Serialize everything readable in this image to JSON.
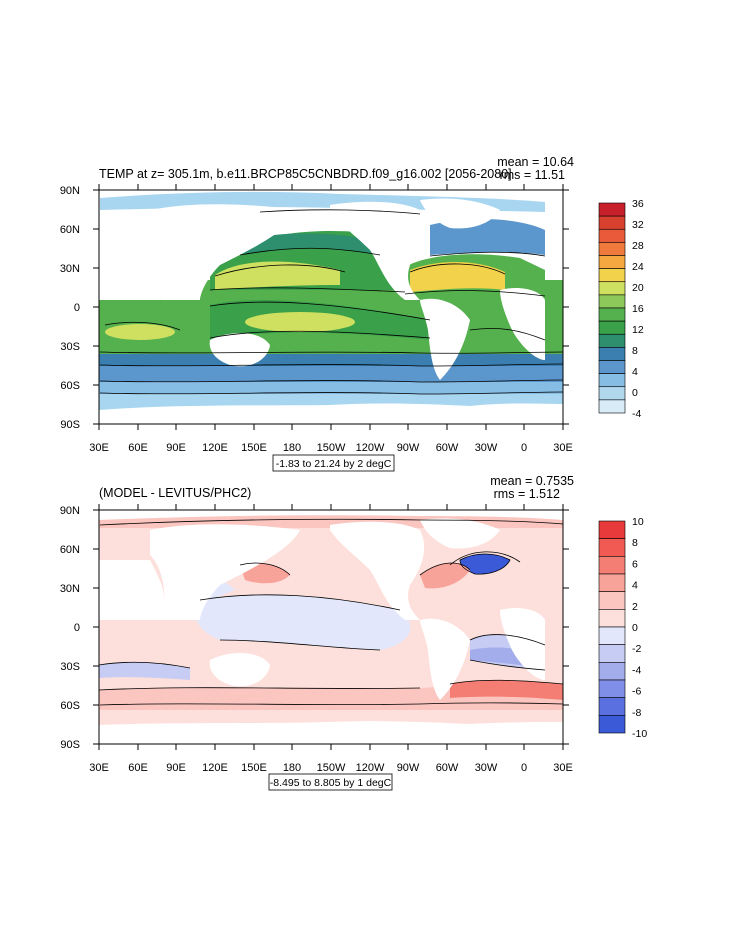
{
  "panels": [
    {
      "title": "TEMP at z= 305.1m, b.e11.BRCP85C5CNBDRD.f09_g16.002 [2056-2080]",
      "stat_mean": "mean = 10.64",
      "stat_rms": "rms = 11.51",
      "contour_info": "-1.83 to 21.24 by 2 degC",
      "colorbar": {
        "labels": [
          "36",
          "32",
          "28",
          "24",
          "20",
          "16",
          "12",
          "8",
          "4",
          "0",
          "-4"
        ],
        "colors": [
          "#c8202a",
          "#d8402f",
          "#e85a3a",
          "#f07a3c",
          "#f5a840",
          "#f1d24a",
          "#cfe060",
          "#8cc85a",
          "#55b04e",
          "#3aa04a",
          "#2e8f6e",
          "#3a7fb0",
          "#5b96cc",
          "#86bde5",
          "#b2d8ee",
          "#d8ecf7"
        ]
      }
    },
    {
      "title": "(MODEL - LEVITUS/PHC2)",
      "stat_mean": "mean = 0.7535",
      "stat_rms": "rms = 1.512",
      "contour_info": "-8.495 to 8.805 by 1 degC",
      "colorbar": {
        "labels": [
          "10",
          "8",
          "6",
          "4",
          "2",
          "0",
          "-2",
          "-4",
          "-6",
          "-8",
          "-10"
        ],
        "colors": [
          "#e83a3a",
          "#f05a52",
          "#f47e74",
          "#f8a39a",
          "#fbc6c0",
          "#fde0dc",
          "#e3e7fb",
          "#c6ccf3",
          "#a3adec",
          "#7f8ee6",
          "#5a70e0",
          "#3a5ad8"
        ]
      }
    }
  ],
  "axes": {
    "lon_ticks": [
      "30E",
      "60E",
      "90E",
      "120E",
      "150E",
      "180",
      "150W",
      "120W",
      "90W",
      "60W",
      "30W",
      "0",
      "30E"
    ],
    "lat_ticks": [
      "90N",
      "60N",
      "30N",
      "0",
      "30S",
      "60S",
      "90S"
    ]
  }
}
